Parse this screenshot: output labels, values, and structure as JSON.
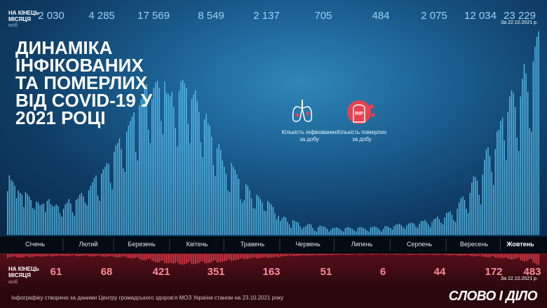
{
  "header": {
    "top_label": "НА КІНЕЦЬ\nМІСЯЦЯ",
    "top_unit": "осіб",
    "title": "Динаміка інфікованих та померлих від COVID-19 у 2021 році",
    "top_date": "За 22.10.2021 р.",
    "bottom_label": "НА КІНЕЦЬ\nМІСЯЦЯ",
    "bottom_unit": "осіб",
    "bottom_date": "За 22.10.2021 р."
  },
  "legend": {
    "infected": "Кількість інфікованих за добу",
    "deaths": "Кількість померлих за добу",
    "infected_icon": "lungs-virus-icon",
    "deaths_icon": "rip-tombstone-icon"
  },
  "colors": {
    "infected": "#5ec8f5",
    "deaths": "#e8414f",
    "infected_total": "#9bd0f3",
    "deaths_total": "#ff8a95"
  },
  "footer": {
    "source": "Інфографіку створено за даними Центру громадського здоров'я МОЗ України станом на 23.10.2021 року",
    "logo": "СЛОВО І ДІЛО"
  },
  "chart_data": [
    {
      "type": "bar",
      "series": [
        {
          "name": "Кількість інфікованих за добу"
        }
      ],
      "categories": [
        "Січень",
        "Лютий",
        "Березень",
        "Квітень",
        "Травень",
        "Червень",
        "Липень",
        "Серпень",
        "Вересень",
        "Жовтень"
      ],
      "month_totals": [
        "2 030",
        "4 285",
        "17 569",
        "8 549",
        "2 137",
        "705",
        "484",
        "2 075",
        "12 034",
        "23 229"
      ],
      "monthly_daily_levels": [
        [
          5000,
          6800,
          6300,
          6100,
          5600,
          4200,
          5100,
          4800,
          4600,
          3200,
          4900,
          4700,
          4400,
          4000,
          3100,
          2900,
          3800,
          3700,
          3400,
          3500,
          3600,
          2600,
          3900,
          4100,
          3500,
          3300,
          3300,
          3500,
          3300,
          2500,
          2100
        ],
        [
          3000,
          3500,
          3700,
          4100,
          3600,
          2600,
          2200,
          4000,
          4200,
          4600,
          4800,
          4400,
          3700,
          3400,
          5100,
          5600,
          6000,
          6500,
          6800,
          4500,
          3900,
          7000,
          7500,
          7800,
          8200,
          8100,
          6000,
          5200
        ],
        [
          9500,
          10200,
          10500,
          11000,
          9800,
          7600,
          7200,
          11800,
          12500,
          13000,
          13500,
          14000,
          9500,
          8500,
          14800,
          15500,
          16000,
          16600,
          17200,
          12000,
          10500,
          15500,
          16800,
          17400,
          17600,
          16800,
          13000,
          11500,
          17500,
          16200,
          16100
        ],
        [
          15800,
          16300,
          14600,
          12200,
          10100,
          16400,
          17500,
          17700,
          17300,
          16800,
          12700,
          10500,
          15500,
          16000,
          16500,
          15300,
          14000,
          10600,
          8900,
          13200,
          13800,
          12700,
          12400,
          11200,
          8000,
          6700,
          9900,
          10400,
          9700,
          8500
        ],
        [
          7800,
          7000,
          5100,
          4900,
          8200,
          7800,
          7400,
          6900,
          6400,
          4100,
          3700,
          4000,
          5800,
          5600,
          5100,
          4200,
          3100,
          3000,
          4600,
          4400,
          4100,
          3700,
          2800,
          2700,
          3900,
          3700,
          3500,
          3200,
          2500,
          1800,
          2200
        ],
        [
          1600,
          1900,
          2100,
          2000,
          1500,
          1200,
          800,
          1700,
          1600,
          1500,
          1400,
          1000,
          700,
          900,
          1000,
          1200,
          1300,
          1200,
          800,
          500,
          400,
          900,
          1100,
          1000,
          1000,
          900,
          700,
          400,
          600,
          800
        ],
        [
          800,
          900,
          800,
          700,
          500,
          400,
          800,
          900,
          900,
          800,
          700,
          500,
          400,
          800,
          900,
          900,
          800,
          700,
          500,
          400,
          900,
          900,
          1000,
          900,
          800,
          600,
          400,
          700,
          1000,
          1000,
          900
        ],
        [
          800,
          600,
          1000,
          1200,
          1200,
          1300,
          1100,
          900,
          700,
          1100,
          1300,
          1400,
          1400,
          1300,
          1000,
          800,
          1300,
          1600,
          1600,
          1700,
          1500,
          1200,
          900,
          1500,
          1800,
          1900,
          2100,
          1800,
          1400,
          1200,
          2000
        ],
        [
          2500,
          2600,
          2700,
          2300,
          1700,
          1500,
          3000,
          3700,
          4200,
          4400,
          4000,
          3000,
          2500,
          4800,
          6000,
          6700,
          6600,
          6200,
          4600,
          3500,
          6900,
          8600,
          9700,
          10000,
          9000,
          7200,
          5700,
          9800,
          11800,
          12000
        ],
        [
          13000,
          13400,
          10800,
          8600,
          14000,
          15800,
          16500,
          16200,
          14600,
          11100,
          9600,
          15800,
          17800,
          19500,
          18400,
          16300,
          12200,
          11800,
          19800,
          21500,
          22600,
          23229
        ]
      ],
      "ylim": [
        0,
        24000
      ]
    },
    {
      "type": "bar",
      "series": [
        {
          "name": "Кількість померлих за добу"
        }
      ],
      "categories": [
        "Січень",
        "Лютий",
        "Березень",
        "Квітень",
        "Травень",
        "Червень",
        "Липень",
        "Серпень",
        "Вересень",
        "Жовтень"
      ],
      "month_totals": [
        "61",
        "68",
        "421",
        "351",
        "163",
        "51",
        "6",
        "44",
        "172",
        "483"
      ],
      "monthly_daily_levels": [
        [
          180,
          150,
          140,
          120,
          100,
          140,
          170,
          160,
          150,
          140,
          110,
          90,
          150,
          140,
          130,
          120,
          100,
          80,
          120,
          120,
          110,
          100,
          90,
          70,
          110,
          110,
          100,
          90,
          70,
          60,
          90
        ],
        [
          80,
          90,
          90,
          80,
          70,
          60,
          50,
          90,
          100,
          100,
          90,
          80,
          70,
          60,
          100,
          110,
          110,
          100,
          90,
          70,
          60,
          110,
          120,
          130,
          120,
          110,
          90,
          80
        ],
        [
          130,
          140,
          150,
          140,
          130,
          110,
          100,
          160,
          180,
          190,
          200,
          190,
          160,
          140,
          220,
          250,
          270,
          280,
          260,
          220,
          200,
          300,
          330,
          360,
          380,
          360,
          310,
          280,
          400,
          410,
          421
        ],
        [
          380,
          420,
          430,
          400,
          350,
          450,
          470,
          480,
          460,
          430,
          380,
          330,
          440,
          460,
          450,
          430,
          400,
          340,
          310,
          400,
          420,
          410,
          390,
          360,
          300,
          270,
          380,
          370,
          360,
          351
        ],
        [
          320,
          300,
          260,
          240,
          300,
          290,
          280,
          260,
          240,
          200,
          190,
          240,
          230,
          220,
          200,
          180,
          160,
          150,
          200,
          190,
          180,
          170,
          150,
          130,
          170,
          170,
          160,
          150,
          130,
          110,
          163
        ],
        [
          120,
          110,
          100,
          95,
          80,
          70,
          60,
          100,
          95,
          90,
          85,
          70,
          60,
          50,
          80,
          75,
          70,
          65,
          55,
          45,
          40,
          65,
          60,
          58,
          55,
          50,
          40,
          35,
          50,
          51
        ],
        [
          40,
          42,
          38,
          35,
          25,
          20,
          38,
          40,
          37,
          33,
          25,
          18,
          15,
          35,
          37,
          34,
          30,
          22,
          17,
          14,
          33,
          35,
          32,
          28,
          20,
          15,
          12,
          30,
          31,
          28,
          6
        ],
        [
          20,
          15,
          30,
          33,
          35,
          33,
          28,
          20,
          15,
          35,
          38,
          40,
          38,
          32,
          22,
          17,
          40,
          42,
          45,
          43,
          36,
          26,
          20,
          45,
          48,
          50,
          48,
          40,
          30,
          25,
          44
        ],
        [
          55,
          58,
          60,
          55,
          45,
          35,
          70,
          75,
          80,
          78,
          70,
          55,
          45,
          90,
          100,
          110,
          105,
          95,
          75,
          60,
          120,
          130,
          140,
          150,
          140,
          110,
          90,
          160,
          165,
          172
        ],
        [
          180,
          190,
          170,
          150,
          210,
          230,
          250,
          240,
          220,
          180,
          160,
          270,
          300,
          330,
          320,
          290,
          240,
          220,
          380,
          420,
          460,
          483
        ]
      ],
      "ylim": [
        0,
        500
      ]
    }
  ]
}
